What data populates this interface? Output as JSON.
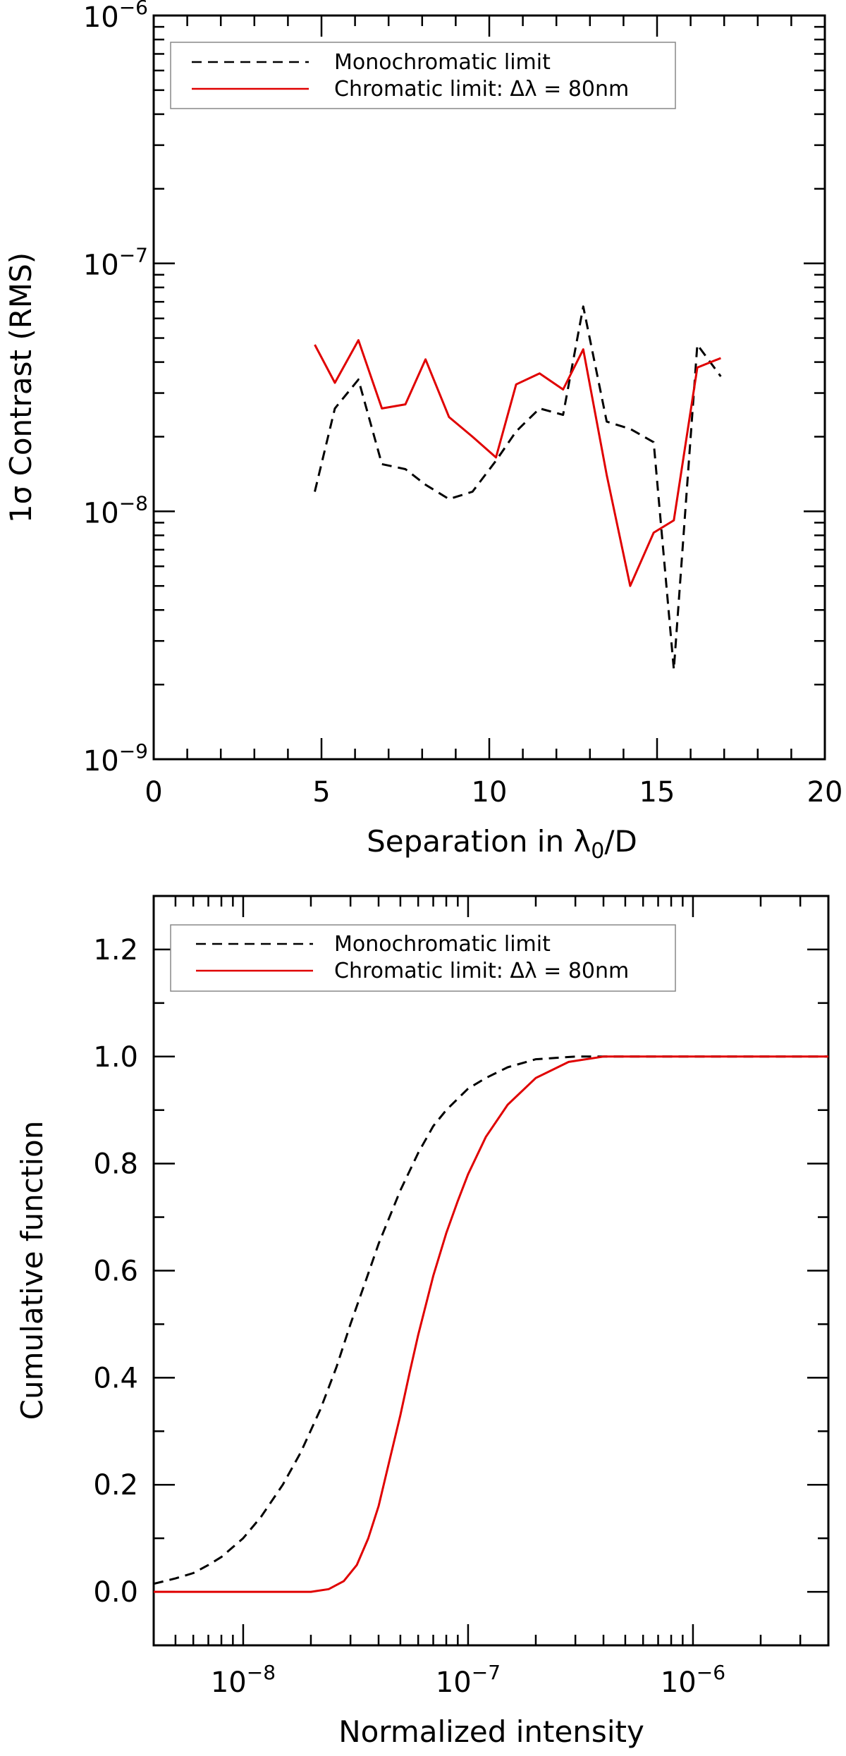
{
  "figure": {
    "colors": {
      "monochromatic": "#000000",
      "chromatic": "#e00000",
      "axes": "#000000",
      "legend_border": "#888888"
    }
  },
  "chart_data": [
    {
      "type": "line",
      "title": "",
      "xlabel": "Separation in λ",
      "xlabel_sub": "0",
      "xlabel_suffix": "/D",
      "ylabel": "1σ Contrast (RMS)",
      "xscale": "linear",
      "yscale": "log",
      "xlim": [
        0,
        20
      ],
      "ylim": [
        1e-09,
        1e-06
      ],
      "x_ticks": [
        0,
        5,
        10,
        15,
        20
      ],
      "x_tick_labels": [
        "0",
        "5",
        "10",
        "15",
        "20"
      ],
      "y_ticks": [
        1e-09,
        1e-08,
        1e-07,
        1e-06
      ],
      "y_tick_labels": [
        {
          "base": "10",
          "exp": "−9"
        },
        {
          "base": "10",
          "exp": "−8"
        },
        {
          "base": "10",
          "exp": "−7"
        },
        {
          "base": "10",
          "exp": "−6"
        }
      ],
      "legend_position": "top-left",
      "series": [
        {
          "name": "Monochromatic limit",
          "style": "dashed",
          "color": "#000000",
          "x": [
            4.8,
            5.4,
            6.1,
            6.8,
            7.5,
            8.1,
            8.8,
            9.5,
            10.2,
            10.8,
            11.5,
            12.2,
            12.8,
            13.5,
            14.2,
            14.9,
            15.5,
            16.2,
            16.9
          ],
          "y": [
            1.2e-08,
            2.6e-08,
            3.4e-08,
            1.55e-08,
            1.48e-08,
            1.28e-08,
            1.12e-08,
            1.2e-08,
            1.6e-08,
            2.1e-08,
            2.6e-08,
            2.45e-08,
            6.7e-08,
            2.3e-08,
            2.15e-08,
            1.9e-08,
            2.3e-09,
            4.7e-08,
            3.5e-08
          ]
        },
        {
          "name": "Chromatic limit: Δλ = 80nm",
          "style": "solid",
          "color": "#e00000",
          "x": [
            4.8,
            5.4,
            6.1,
            6.8,
            7.5,
            8.1,
            8.8,
            9.5,
            10.2,
            10.8,
            11.5,
            12.2,
            12.8,
            13.5,
            14.2,
            14.9,
            15.5,
            16.2,
            16.9
          ],
          "y": [
            4.7e-08,
            3.3e-08,
            4.9e-08,
            2.6e-08,
            2.7e-08,
            4.1e-08,
            2.4e-08,
            2e-08,
            1.65e-08,
            3.25e-08,
            3.6e-08,
            3.1e-08,
            4.5e-08,
            1.4e-08,
            5e-09,
            8.2e-09,
            9.2e-09,
            3.8e-08,
            4.15e-08
          ]
        }
      ]
    },
    {
      "type": "line",
      "title": "",
      "xlabel": "Normalized intensity",
      "ylabel": "Cumulative function",
      "xscale": "log",
      "yscale": "linear",
      "xlim": [
        4e-09,
        4e-06
      ],
      "ylim": [
        -0.1,
        1.3
      ],
      "x_ticks": [
        1e-08,
        1e-07,
        1e-06
      ],
      "x_tick_labels": [
        {
          "base": "10",
          "exp": "−8"
        },
        {
          "base": "10",
          "exp": "−7"
        },
        {
          "base": "10",
          "exp": "−6"
        }
      ],
      "y_ticks": [
        0.0,
        0.2,
        0.4,
        0.6,
        0.8,
        1.0,
        1.2
      ],
      "y_tick_labels": [
        "0.0",
        "0.2",
        "0.4",
        "0.6",
        "0.8",
        "1.0",
        "1.2"
      ],
      "legend_position": "top-left",
      "series": [
        {
          "name": "Monochromatic limit",
          "style": "dashed",
          "color": "#000000",
          "x": [
            4e-09,
            5e-09,
            6e-09,
            7e-09,
            8e-09,
            1e-08,
            1.2e-08,
            1.5e-08,
            1.8e-08,
            2.2e-08,
            2.6e-08,
            3e-08,
            3.5e-08,
            4e-08,
            5e-08,
            6e-08,
            7e-08,
            8e-08,
            1e-07,
            1.2e-07,
            1.5e-07,
            2e-07,
            3e-07,
            4e-07,
            6e-07,
            1e-06,
            4e-06
          ],
          "y": [
            0.015,
            0.025,
            0.035,
            0.05,
            0.065,
            0.1,
            0.14,
            0.2,
            0.26,
            0.34,
            0.42,
            0.5,
            0.58,
            0.65,
            0.75,
            0.82,
            0.87,
            0.9,
            0.94,
            0.96,
            0.98,
            0.995,
            1.0,
            1.0,
            1.0,
            1.0,
            1.0
          ]
        },
        {
          "name": "Chromatic limit: Δλ = 80nm",
          "style": "solid",
          "color": "#e00000",
          "x": [
            4e-09,
            1e-08,
            1.5e-08,
            2e-08,
            2.4e-08,
            2.8e-08,
            3.2e-08,
            3.6e-08,
            4e-08,
            4.5e-08,
            5e-08,
            5.5e-08,
            6e-08,
            7e-08,
            8e-08,
            9e-08,
            1e-07,
            1.2e-07,
            1.5e-07,
            2e-07,
            2.8e-07,
            4e-07,
            6e-07,
            1e-06,
            4e-06
          ],
          "y": [
            0.0,
            0.0,
            0.0,
            0.0,
            0.005,
            0.02,
            0.05,
            0.1,
            0.16,
            0.25,
            0.33,
            0.41,
            0.48,
            0.59,
            0.67,
            0.73,
            0.78,
            0.85,
            0.91,
            0.96,
            0.99,
            1.0,
            1.0,
            1.0,
            1.0
          ]
        }
      ]
    }
  ]
}
